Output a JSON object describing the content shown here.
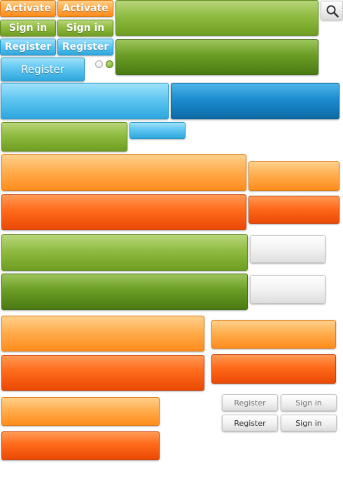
{
  "buttons": {
    "activate_label": "Activate",
    "signin_label": "Sign in",
    "register_label": "Register"
  },
  "icons": {
    "search": "search-icon"
  },
  "colors": {
    "orange": "#ffae4f",
    "orange_dark": "#ff6a1a",
    "green": "#8fbb41",
    "green_dark": "#6a9d25",
    "blue": "#5fc6f1",
    "blue_dark": "#1b8ccf",
    "gray": "#f2f2f2"
  }
}
